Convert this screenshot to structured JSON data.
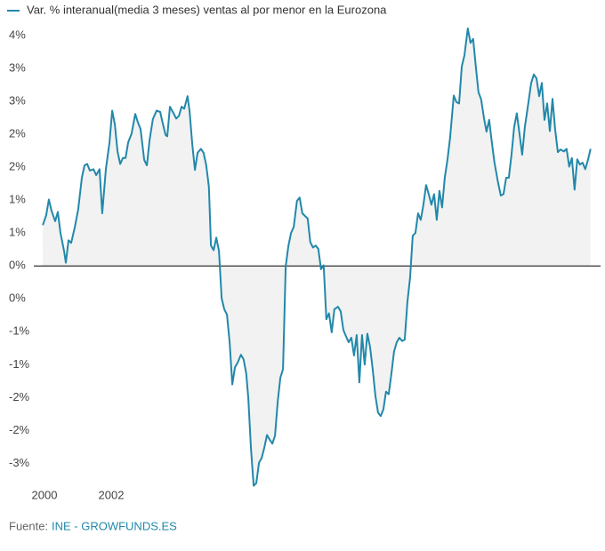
{
  "chart_data": {
    "type": "area-line",
    "series": [
      {
        "name": "Var. % interanual(media 3 meses) ventas al por menor en la Eurozona",
        "color": "#2288aa",
        "values": [
          0.62,
          0.77,
          1.01,
          0.84,
          0.68,
          0.82,
          0.5,
          0.22,
          0.05,
          0.39,
          0.35,
          0.59,
          0.86,
          1.34,
          1.53,
          1.55,
          1.45,
          1.47,
          1.38,
          1.47,
          0.8,
          1.47,
          1.88,
          2.36,
          2.15,
          1.74,
          1.55,
          1.64,
          1.64,
          1.88,
          2.01,
          2.31,
          2.18,
          2.08,
          1.61,
          1.53,
          1.91,
          2.23,
          2.36,
          2.34,
          2.22,
          1.99,
          1.97,
          2.42,
          2.32,
          2.24,
          2.28,
          2.42,
          2.39,
          2.58,
          2.35,
          1.85,
          1.46,
          1.72,
          1.78,
          1.72,
          1.53,
          1.2,
          0.31,
          0.24,
          0.43,
          0.23,
          -0.49,
          -0.66,
          -0.74,
          -1.16,
          -1.8,
          -1.54,
          -1.47,
          -1.35,
          -1.42,
          -1.64,
          -2.01,
          -2.78,
          -3.34,
          -3.3,
          -2.99,
          -2.92,
          -2.76,
          -2.57,
          -2.64,
          -2.7,
          -2.58,
          -2.07,
          -1.7,
          -1.57,
          -0.01,
          0.3,
          0.5,
          0.59,
          0.99,
          1.04,
          0.8,
          0.76,
          0.72,
          0.36,
          0.28,
          0.31,
          0.26,
          -0.05,
          0.01,
          -0.81,
          -0.72,
          -1.01,
          -0.66,
          -0.62,
          -0.69,
          -0.97,
          -1.07,
          -1.16,
          -1.09,
          -1.36,
          -1.05,
          -1.77,
          -1.05,
          -1.5,
          -1.03,
          -1.23,
          -1.57,
          -1.97,
          -2.23,
          -2.28,
          -2.18,
          -1.91,
          -1.95,
          -1.64,
          -1.3,
          -1.16,
          -1.09,
          -1.14,
          -1.12,
          -0.55,
          -0.18,
          0.46,
          0.5,
          0.8,
          0.7,
          0.93,
          1.23,
          1.09,
          0.93,
          1.09,
          0.7,
          1.14,
          0.89,
          1.34,
          1.61,
          1.95,
          2.59,
          2.49,
          2.47,
          3.03,
          3.2,
          3.61,
          3.39,
          3.45,
          3.03,
          2.64,
          2.53,
          2.26,
          2.04,
          2.22,
          1.88,
          1.57,
          1.26,
          1.07,
          1.09,
          1.34,
          1.34,
          1.69,
          2.11,
          2.32,
          2.01,
          1.69,
          2.11,
          2.49,
          2.78,
          2.91,
          2.85,
          2.58,
          2.78,
          2.22,
          2.47,
          2.05,
          2.54,
          2.07,
          1.73,
          1.77,
          1.74,
          1.78,
          1.51,
          1.64,
          1.16,
          1.62,
          1.54,
          1.57,
          1.47,
          1.61,
          1.78
        ]
      }
    ],
    "x": [
      1999.95,
      2000.05,
      2000.13,
      2000.21,
      2000.32,
      2000.4,
      2000.48,
      2000.59,
      2000.64,
      2000.72,
      2000.8,
      2000.91,
      2001.01,
      2001.12,
      2001.2,
      2001.28,
      2001.36,
      2001.47,
      2001.55,
      2001.65,
      2001.73,
      2001.84,
      2001.95,
      2002.03,
      2002.11,
      2002.19,
      2002.27,
      2002.35,
      2002.43,
      2002.51,
      2002.61,
      2002.72,
      2002.8,
      2002.88,
      2002.99,
      2003.07,
      2003.15,
      2003.25,
      2003.36,
      2003.47,
      2003.52,
      2003.63,
      2003.68,
      2003.76,
      2003.87,
      2003.95,
      2004.03,
      2004.11,
      2004.19,
      2004.29,
      2004.35,
      2004.43,
      2004.51,
      2004.59,
      2004.69,
      2004.77,
      2004.85,
      2004.93,
      2004.99,
      2005.07,
      2005.15,
      2005.23,
      2005.31,
      2005.39,
      2005.47,
      2005.55,
      2005.63,
      2005.71,
      2005.79,
      2005.89,
      2005.97,
      2006.05,
      2006.11,
      2006.19,
      2006.27,
      2006.35,
      2006.43,
      2006.51,
      2006.59,
      2006.67,
      2006.75,
      2006.83,
      2006.91,
      2006.99,
      2007.07,
      2007.15,
      2007.23,
      2007.31,
      2007.39,
      2007.47,
      2007.57,
      2007.65,
      2007.73,
      2007.81,
      2007.89,
      2007.97,
      2008.05,
      2008.13,
      2008.21,
      2008.29,
      2008.37,
      2008.45,
      2008.53,
      2008.61,
      2008.69,
      2008.8,
      2008.88,
      2008.96,
      2009.04,
      2009.12,
      2009.2,
      2009.28,
      2009.36,
      2009.44,
      2009.52,
      2009.6,
      2009.68,
      2009.76,
      2009.84,
      2009.92,
      2010.0,
      2010.08,
      2010.16,
      2010.24,
      2010.32,
      2010.4,
      2010.48,
      2010.56,
      2010.64,
      2010.72,
      2010.8,
      2010.88,
      2010.96,
      2011.04,
      2011.12,
      2011.2,
      2011.28,
      2011.36,
      2011.44,
      2011.52,
      2011.6,
      2011.68,
      2011.76,
      2011.84,
      2011.92,
      2012.0,
      2012.08,
      2012.16,
      2012.27,
      2012.35,
      2012.43,
      2012.51,
      2012.59,
      2012.69,
      2012.77,
      2012.85,
      2012.93,
      2013.01,
      2013.09,
      2013.17,
      2013.25,
      2013.33,
      2013.41,
      2013.49,
      2013.6,
      2013.68,
      2013.76,
      2013.84,
      2013.92,
      2014.0,
      2014.08,
      2014.16,
      2014.24,
      2014.32,
      2014.4,
      2014.51,
      2014.59,
      2014.67,
      2014.75,
      2014.83,
      2014.91,
      2014.99,
      2015.07,
      2015.15,
      2015.23,
      2015.31,
      2015.39,
      2015.47,
      2015.57,
      2015.65,
      2015.73,
      2015.81,
      2015.89,
      2015.97,
      2016.05,
      2016.13,
      2016.21,
      2016.29,
      2016.37
    ],
    "xlim": [
      1999.68,
      2016.67
    ],
    "xticks": [
      2000,
      2002
    ],
    "ylim": [
      -3.4,
      3.65
    ],
    "yticks": [
      {
        "value": 3.5,
        "label": "4%"
      },
      {
        "value": 3,
        "label": "3%"
      },
      {
        "value": 2.5,
        "label": "3%"
      },
      {
        "value": 2,
        "label": "2%"
      },
      {
        "value": 1.5,
        "label": "2%"
      },
      {
        "value": 1,
        "label": "1%"
      },
      {
        "value": 0.5,
        "label": "1%"
      },
      {
        "value": 0,
        "label": "0%"
      },
      {
        "value": -0.5,
        "label": "0%"
      },
      {
        "value": -1,
        "label": "-1%"
      },
      {
        "value": -1.5,
        "label": "-1%"
      },
      {
        "value": -2,
        "label": "-2%"
      },
      {
        "value": -2.5,
        "label": "-2%"
      },
      {
        "value": -3,
        "label": "-3%"
      }
    ],
    "area_color": "#f2f2f2",
    "source_label": "Fuente:",
    "source": "INE - GROWFUNDS.ES"
  }
}
